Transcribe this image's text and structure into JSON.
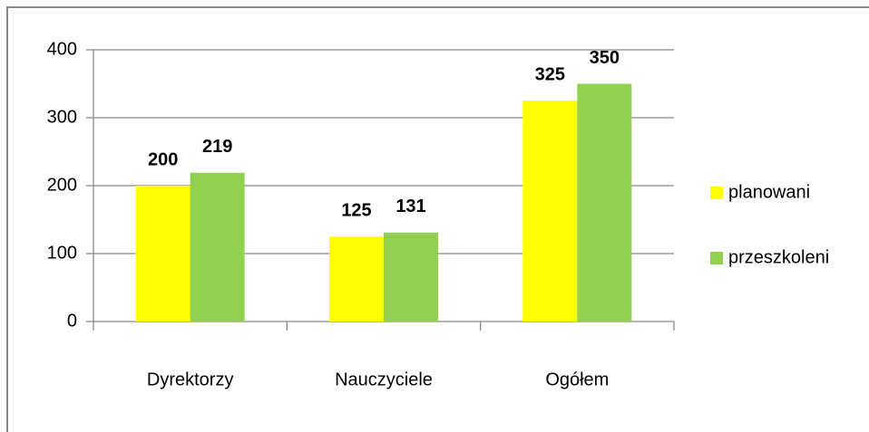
{
  "chart_data": {
    "type": "bar",
    "categories": [
      "Dyrektorzy",
      "Nauczyciele",
      "Ogółem"
    ],
    "series": [
      {
        "name": "planowani",
        "color": "#ffff00",
        "values": [
          200,
          125,
          325
        ]
      },
      {
        "name": "przeszkoleni",
        "color": "#92d050",
        "values": [
          219,
          131,
          350
        ]
      }
    ],
    "ylim": [
      0,
      400
    ],
    "yticks": [
      0,
      100,
      200,
      300,
      400
    ],
    "grid": true,
    "legend": "right"
  }
}
